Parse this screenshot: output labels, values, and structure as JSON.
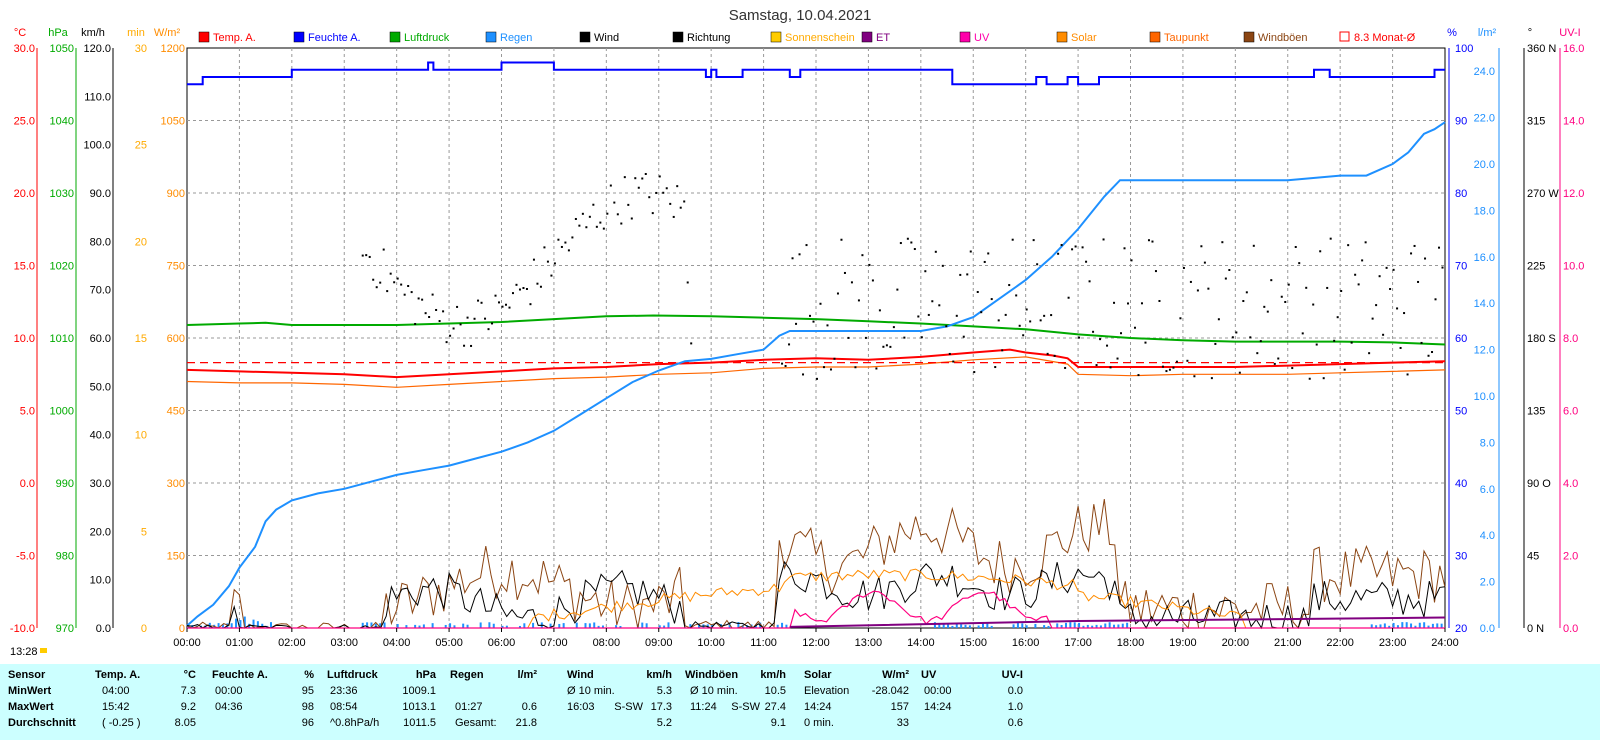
{
  "title": "Samstag, 10.04.2021",
  "current_time": "13:28",
  "legend": [
    {
      "label": "Temp. A.",
      "color": "#ff0000"
    },
    {
      "label": "Feuchte A.",
      "color": "#0000ff"
    },
    {
      "label": "Luftdruck",
      "color": "#00aa00"
    },
    {
      "label": "Regen",
      "color": "#1e90ff"
    },
    {
      "label": "Wind",
      "color": "#000000"
    },
    {
      "label": "Richtung",
      "color": "#000000"
    },
    {
      "label": "Sonnenschein",
      "color": "#ffcc00"
    },
    {
      "label": "ET",
      "color": "#800080"
    },
    {
      "label": "UV",
      "color": "#ff00aa"
    },
    {
      "label": "Solar",
      "color": "#ff8c00"
    },
    {
      "label": "Taupunkt",
      "color": "#ff6600"
    },
    {
      "label": "Windböen",
      "color": "#8b4513"
    },
    {
      "label": "8.3 Monat-Ø",
      "color": "#ff0000"
    }
  ],
  "chart_data": {
    "type": "line",
    "title": "Samstag, 10.04.2021",
    "x_ticks": [
      "00:00",
      "01:00",
      "02:00",
      "03:00",
      "04:00",
      "05:00",
      "06:00",
      "07:00",
      "08:00",
      "09:00",
      "10:00",
      "11:00",
      "12:00",
      "13:00",
      "14:00",
      "15:00",
      "16:00",
      "17:00",
      "18:00",
      "19:00",
      "20:00",
      "21:00",
      "22:00",
      "23:00",
      "24:00"
    ],
    "axes": {
      "temp": {
        "unit": "°C",
        "color": "#ff0000",
        "min": -10,
        "max": 30,
        "ticks": [
          "30.0",
          "25.0",
          "20.0",
          "15.0",
          "10.0",
          "5.0",
          "0.0",
          "-5.0",
          "-10.0"
        ]
      },
      "pressure": {
        "unit": "hPa",
        "color": "#00aa00",
        "min": 970,
        "max": 1050,
        "ticks": [
          "1050",
          "1040",
          "1030",
          "1020",
          "1010",
          "1000",
          "990",
          "980",
          "970"
        ]
      },
      "wind": {
        "unit": "km/h",
        "color": "#000000",
        "min": 0,
        "max": 120,
        "ticks": [
          "120.0",
          "110.0",
          "100.0",
          "90.0",
          "80.0",
          "70.0",
          "60.0",
          "50.0",
          "40.0",
          "30.0",
          "20.0",
          "10.0",
          "0.0"
        ]
      },
      "sunmin": {
        "unit": "min",
        "color": "#ffaa00",
        "min": 0,
        "max": 30,
        "ticks": [
          "30",
          "25",
          "20",
          "15",
          "10",
          "5",
          "0"
        ]
      },
      "solar": {
        "unit": "W/m²",
        "color": "#ff8c00",
        "min": 0,
        "max": 1200,
        "ticks": [
          "1200",
          "1050",
          "900",
          "750",
          "600",
          "450",
          "300",
          "150",
          "0"
        ]
      },
      "humidity": {
        "unit": "%",
        "color": "#0000ff",
        "min": 20,
        "max": 100,
        "ticks": [
          "100",
          "90",
          "80",
          "70",
          "60",
          "50",
          "40",
          "30",
          "20"
        ]
      },
      "rain": {
        "unit": "l/m²",
        "color": "#1e90ff",
        "min": 0,
        "max": 25,
        "ticks": [
          "24.0",
          "22.0",
          "20.0",
          "18.0",
          "16.0",
          "14.0",
          "12.0",
          "10.0",
          "8.0",
          "6.0",
          "4.0",
          "2.0",
          "0.0"
        ]
      },
      "direction": {
        "unit": "°",
        "color": "#000000",
        "min": 0,
        "max": 360,
        "ticks": [
          "360 N",
          "315",
          "270 W",
          "225",
          "180 S",
          "135",
          "90 O",
          "45",
          "0 N"
        ]
      },
      "uv": {
        "unit": "UV-I",
        "color": "#ff0080",
        "min": 0,
        "max": 16,
        "ticks": [
          "16.0",
          "14.0",
          "12.0",
          "10.0",
          "8.0",
          "6.0",
          "4.0",
          "2.0",
          "0.0"
        ]
      }
    },
    "series": [
      {
        "name": "Feuchte A.",
        "axis": "humidity",
        "x": [
          0,
          0.3,
          1,
          1.7,
          2,
          3,
          4,
          4.6,
          4.7,
          5.5,
          6,
          6.7,
          7,
          8,
          9,
          9.7,
          9.9,
          10,
          10.1,
          10.6,
          11,
          11.4,
          11.5,
          11.7,
          12,
          13,
          14,
          14.6,
          15,
          15.5,
          16,
          16.2,
          16.4,
          16.8,
          17,
          17.4,
          17.5,
          18,
          19,
          20,
          21,
          21.5,
          21.8,
          22,
          23,
          23.8,
          24
        ],
        "y": [
          95,
          96,
          96,
          96,
          97,
          97,
          97,
          98,
          97,
          97,
          98,
          98,
          97,
          97,
          97,
          97,
          96,
          97,
          96,
          97,
          97,
          97,
          96,
          97,
          97,
          97,
          97,
          95,
          95,
          95,
          95,
          96,
          95,
          96,
          95,
          96,
          96,
          96,
          96,
          96,
          96,
          97,
          96,
          96,
          96,
          97,
          97
        ]
      },
      {
        "name": "Luftdruck",
        "axis": "pressure",
        "x": [
          0,
          1,
          1.5,
          2,
          3,
          4,
          5,
          6,
          7,
          8,
          8.9,
          10,
          11,
          12,
          13,
          14,
          15,
          16,
          17,
          18,
          19,
          20,
          21,
          22,
          23,
          24
        ],
        "y": [
          1011.8,
          1012.0,
          1012.1,
          1011.8,
          1011.8,
          1011.8,
          1012.0,
          1012.2,
          1012.6,
          1013.0,
          1013.1,
          1013.0,
          1012.8,
          1012.6,
          1012.3,
          1012.0,
          1011.6,
          1011.2,
          1010.5,
          1010.0,
          1009.7,
          1009.5,
          1009.5,
          1009.5,
          1009.4,
          1009.1
        ]
      },
      {
        "name": "Temp. A.",
        "axis": "temp",
        "x": [
          0,
          1,
          2,
          3,
          4,
          5,
          6,
          7,
          8,
          9,
          10,
          11,
          12,
          13,
          14,
          15,
          15.7,
          16,
          16.5,
          16.8,
          17,
          18,
          19,
          20,
          21,
          22,
          23,
          24
        ],
        "y": [
          7.8,
          7.7,
          7.6,
          7.5,
          7.3,
          7.5,
          7.7,
          7.9,
          8.0,
          8.2,
          8.3,
          8.5,
          8.6,
          8.5,
          8.7,
          9.0,
          9.2,
          9.0,
          8.8,
          8.6,
          8.0,
          8.0,
          8.0,
          8.0,
          8.1,
          8.2,
          8.3,
          8.4
        ]
      },
      {
        "name": "Taupunkt",
        "axis": "temp",
        "x": [
          0,
          1,
          2,
          3,
          4,
          5,
          6,
          7,
          8,
          9,
          10,
          11,
          12,
          13,
          14,
          15,
          16,
          16.8,
          17,
          18,
          19,
          20,
          21,
          22,
          23,
          24
        ],
        "y": [
          7.0,
          6.9,
          6.9,
          6.8,
          6.6,
          6.8,
          7.0,
          7.2,
          7.3,
          7.5,
          7.6,
          7.9,
          8.0,
          8.0,
          8.2,
          8.5,
          8.7,
          8.2,
          7.5,
          7.4,
          7.5,
          7.5,
          7.5,
          7.6,
          7.7,
          7.8
        ]
      },
      {
        "name": "8.3 Monat-Ø",
        "axis": "temp",
        "x": [
          0,
          24
        ],
        "y": [
          8.3,
          8.3
        ]
      },
      {
        "name": "Regen",
        "axis": "rain",
        "x": [
          0,
          0.2,
          0.5,
          0.8,
          1.0,
          1.3,
          1.5,
          1.7,
          2,
          2.5,
          3,
          3.5,
          4,
          4.5,
          5,
          5.5,
          6,
          6.5,
          7,
          7.5,
          8,
          8.5,
          9,
          9.5,
          10,
          10.5,
          11,
          11.3,
          11.5,
          11.7,
          12,
          12.5,
          13,
          13.5,
          14,
          14.5,
          15,
          15.5,
          16,
          16.5,
          17,
          17.5,
          17.8,
          18,
          19,
          20,
          21,
          22,
          22.5,
          23,
          23.3,
          23.6,
          23.8,
          24
        ],
        "y": [
          0.1,
          0.5,
          1.0,
          1.8,
          2.6,
          3.5,
          4.6,
          5.1,
          5.5,
          5.8,
          6.0,
          6.3,
          6.6,
          6.8,
          7.0,
          7.3,
          7.6,
          8.0,
          8.5,
          9.2,
          9.9,
          10.6,
          11.1,
          11.5,
          11.6,
          11.8,
          12.0,
          12.6,
          12.8,
          12.8,
          12.8,
          12.8,
          12.8,
          12.8,
          12.8,
          13.0,
          13.4,
          14.2,
          15.0,
          16.0,
          17.2,
          18.6,
          19.3,
          19.3,
          19.3,
          19.3,
          19.3,
          19.5,
          19.5,
          20.0,
          20.5,
          21.3,
          21.5,
          21.8
        ]
      }
    ],
    "tick_lines": [
      "wind",
      "gust",
      "solar",
      "uv"
    ]
  },
  "footer": {
    "headers": [
      {
        "label": "Sensor"
      },
      {
        "label": "Temp. A.",
        "unit": "°C"
      },
      {
        "label": "Feuchte A.",
        "unit": "%"
      },
      {
        "label": "Luftdruck",
        "unit": "hPa"
      },
      {
        "label": "Regen",
        "unit": "l/m²"
      },
      {
        "label": "Wind",
        "unit": "km/h"
      },
      {
        "label": "Windböen",
        "unit": "km/h"
      },
      {
        "label": "Solar",
        "unit": "W/m²"
      },
      {
        "label": "UV",
        "unit": "UV-I"
      }
    ],
    "rows": [
      {
        "label": "MinWert",
        "temp": [
          "04:00",
          "7.3"
        ],
        "hum": [
          "00:00",
          "95"
        ],
        "press": [
          "23:36",
          "1009.1"
        ],
        "rain": [
          "",
          ""
        ],
        "wind": [
          "Ø 10 min.",
          "",
          "5.3"
        ],
        "gust": [
          "Ø 10 min.",
          "",
          "10.5"
        ],
        "solar": [
          "Elevation",
          "-28.042"
        ],
        "uv": [
          "00:00",
          "0.0"
        ]
      },
      {
        "label": "MaxWert",
        "temp": [
          "15:42",
          "9.2"
        ],
        "hum": [
          "04:36",
          "98"
        ],
        "press": [
          "08:54",
          "1013.1"
        ],
        "rain": [
          "01:27",
          "0.6"
        ],
        "wind": [
          "16:03",
          "S-SW",
          "17.3"
        ],
        "gust": [
          "11:24",
          "S-SW",
          "27.4"
        ],
        "solar": [
          "14:24",
          "157"
        ],
        "uv": [
          "14:24",
          "1.0"
        ]
      },
      {
        "label": "Durchschnitt",
        "temp": [
          "( -0.25 )",
          "8.05"
        ],
        "hum": [
          "",
          "96"
        ],
        "press": [
          "^0.8hPa/h",
          "1011.5"
        ],
        "rain": [
          "Gesamt:",
          "21.8"
        ],
        "wind": [
          "",
          "",
          "5.2"
        ],
        "gust": [
          "",
          "",
          "9.1"
        ],
        "solar": [
          "0 min.",
          "33"
        ],
        "uv": [
          "",
          "0.6"
        ]
      }
    ]
  }
}
